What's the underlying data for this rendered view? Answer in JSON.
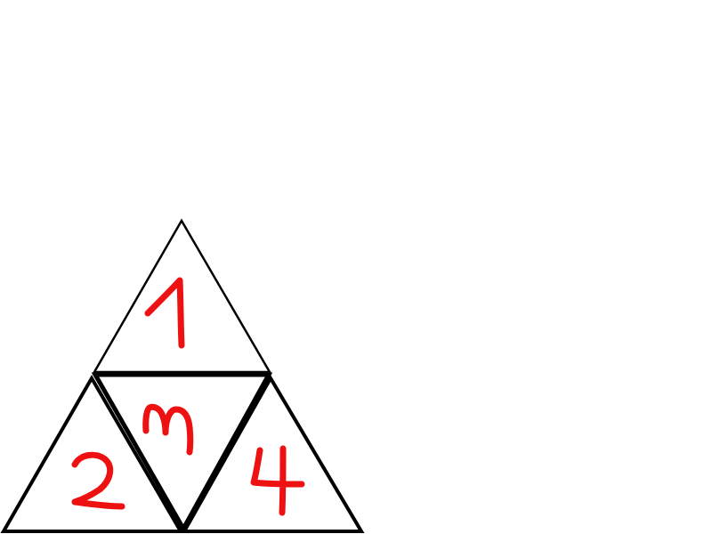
{
  "diagram": {
    "background_color": "#ffffff",
    "outline_color": "#000000",
    "label_color": "#ee1111",
    "triangles": [
      {
        "id": "top",
        "label": "1"
      },
      {
        "id": "bottom-left",
        "label": "2"
      },
      {
        "id": "middle-inverted",
        "label": "3"
      },
      {
        "id": "bottom-right",
        "label": "4"
      }
    ]
  }
}
